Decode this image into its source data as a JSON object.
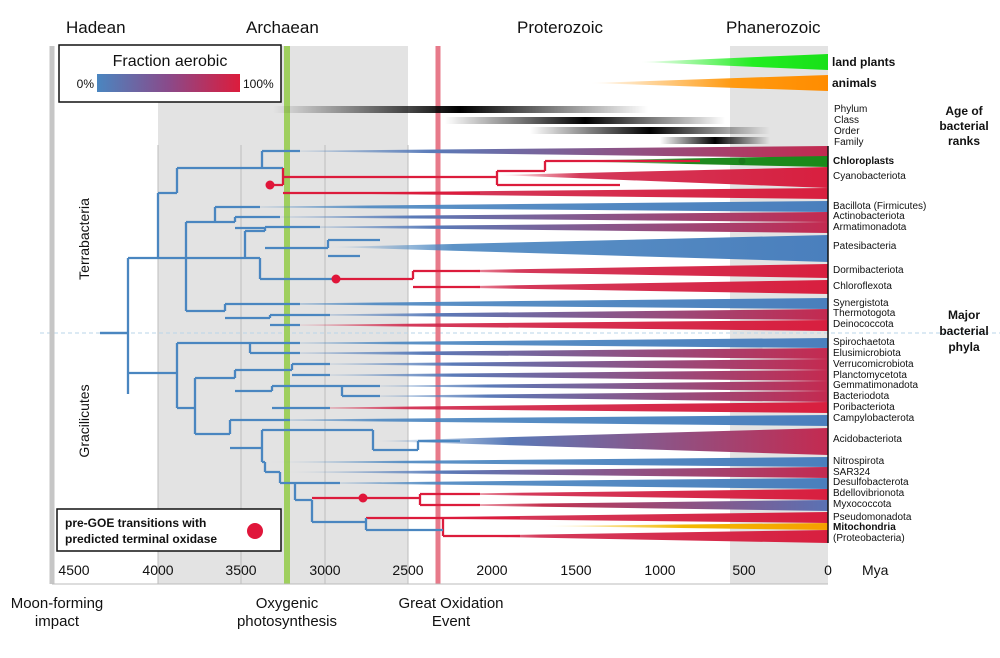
{
  "eons": [
    "Hadean",
    "Archaean",
    "Proterozoic",
    "Phanerozoic"
  ],
  "events": {
    "moon": [
      "Moon-forming",
      "impact"
    ],
    "oxygenic": [
      "Oxygenic",
      "photosynthesis"
    ],
    "goe": [
      "Great Oxidation",
      "Event"
    ]
  },
  "axis": {
    "ticks": [
      "4500",
      "4000",
      "3500",
      "3000",
      "2500",
      "2000",
      "1500",
      "1000",
      "500",
      "0"
    ],
    "unit": "Mya"
  },
  "legend": {
    "title": "Fraction aerobic",
    "min_label": "0%",
    "max_label": "100%",
    "low_color": "#4a86c0",
    "high_color": "#dc1c3c"
  },
  "goe_legend": [
    "pre-GOE transitions with",
    "predicted terminal oxidase"
  ],
  "life": {
    "plants": "land plants",
    "animals": "animals"
  },
  "ranks": [
    "Phylum",
    "Class",
    "Order",
    "Family"
  ],
  "right_labels": {
    "age": [
      "Age of",
      "bacterial",
      "ranks"
    ],
    "major": [
      "Major",
      "bacterial",
      "phyla"
    ]
  },
  "groups": {
    "terra": "Terrabacteria",
    "graci": "Gracilicutes"
  },
  "phyla": [
    {
      "name": "Chloroplasts",
      "special": "green"
    },
    {
      "name": "Cyanobacteriota"
    },
    {
      "name": "Bacillota (Firmicutes)"
    },
    {
      "name": "Actinobacteriota"
    },
    {
      "name": "Armatimonadota"
    },
    {
      "name": "Patesibacteria"
    },
    {
      "name": "Dormibacteriota"
    },
    {
      "name": "Chloroflexota"
    },
    {
      "name": "Synergistota"
    },
    {
      "name": "Thermotogota"
    },
    {
      "name": "Deinococcota"
    },
    {
      "name": "Spirochaetota"
    },
    {
      "name": "Elusimicrobiota"
    },
    {
      "name": "Verrucomicrobiota"
    },
    {
      "name": "Planctomycetota"
    },
    {
      "name": "Gemmatimonadota"
    },
    {
      "name": "Bacteriodota"
    },
    {
      "name": "Poribacteriota"
    },
    {
      "name": "Campylobacterota"
    },
    {
      "name": "Acidobacteriota"
    },
    {
      "name": "Nitrospirota"
    },
    {
      "name": "SAR324"
    },
    {
      "name": "Desulfobacterota"
    },
    {
      "name": "Bdellovibrionota"
    },
    {
      "name": "Myxococcota"
    },
    {
      "name": "Pseudomonadota"
    },
    {
      "name": "Mitochondria",
      "special": "orange"
    },
    {
      "name": "(Proteobacteria)"
    }
  ]
}
